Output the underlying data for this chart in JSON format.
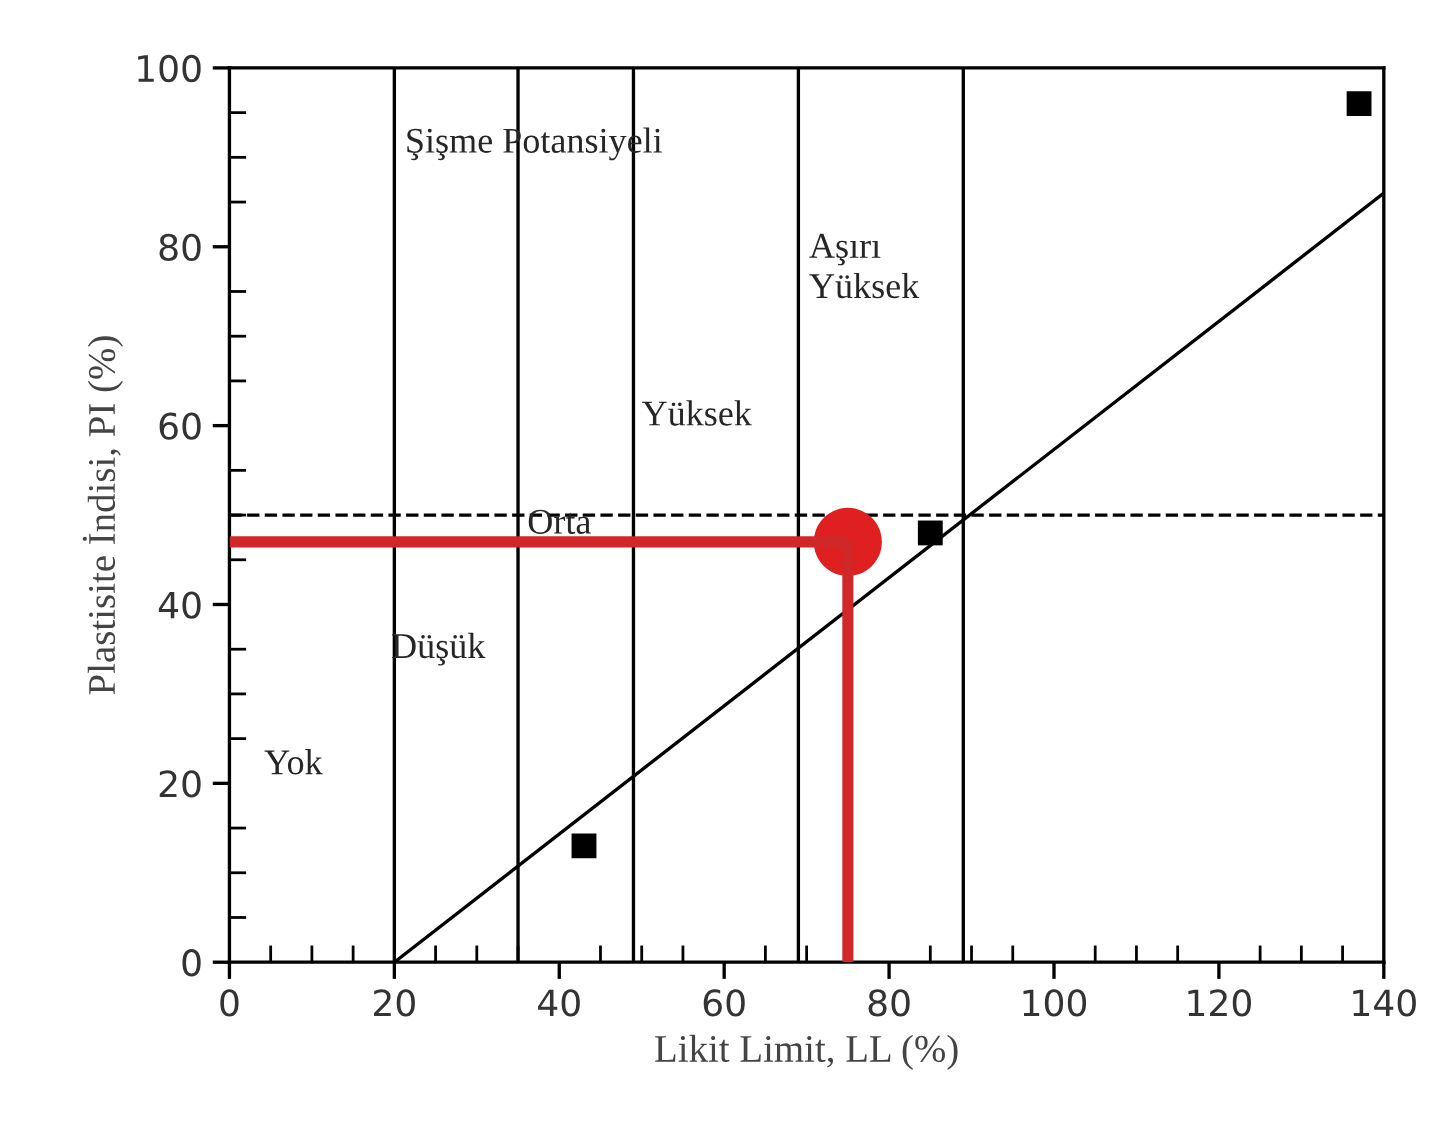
{
  "chart_data": {
    "type": "scatter",
    "xlabel": "Likit Limit, LL (%)",
    "ylabel": "Plastisite İndisi, PI (%)",
    "xlim": [
      0,
      140
    ],
    "ylim": [
      0,
      100
    ],
    "xticks": [
      0,
      20,
      40,
      60,
      80,
      100,
      120,
      140
    ],
    "yticks": [
      0,
      20,
      40,
      60,
      80,
      100
    ],
    "grid": false,
    "legend": false,
    "series": [
      {
        "type": "line",
        "color": "#000000",
        "x": [
          20,
          140
        ],
        "values": [
          0,
          86
        ]
      },
      {
        "type": "line",
        "color": "#d02828",
        "x": [
          0,
          75
        ],
        "values": [
          47,
          47
        ]
      },
      {
        "type": "line",
        "color": "#d02828",
        "x": [
          75,
          75
        ],
        "values": [
          0,
          47
        ]
      },
      {
        "marker": "square",
        "color": "#000000",
        "x": [
          43,
          85,
          137
        ],
        "values": [
          13,
          48,
          96
        ]
      },
      {
        "marker": "circle",
        "color": "#e02020",
        "x": [
          75
        ],
        "values": [
          47
        ]
      }
    ],
    "ref_lines": [
      {
        "axis": "x",
        "value": 20,
        "color": "#000000"
      },
      {
        "axis": "x",
        "value": 35,
        "color": "#000000"
      },
      {
        "axis": "x",
        "value": 49,
        "color": "#000000"
      },
      {
        "axis": "x",
        "value": 69,
        "color": "#000000"
      },
      {
        "axis": "x",
        "value": 89,
        "color": "#000000"
      },
      {
        "axis": "y",
        "value": 50,
        "color": "#000000",
        "line_style": "dashed"
      }
    ],
    "annotations": [
      "Şişme Potansiyeli",
      "Yok",
      "Düşük",
      "Orta",
      "Yüksek",
      "Aşırı\nYüksek"
    ]
  }
}
